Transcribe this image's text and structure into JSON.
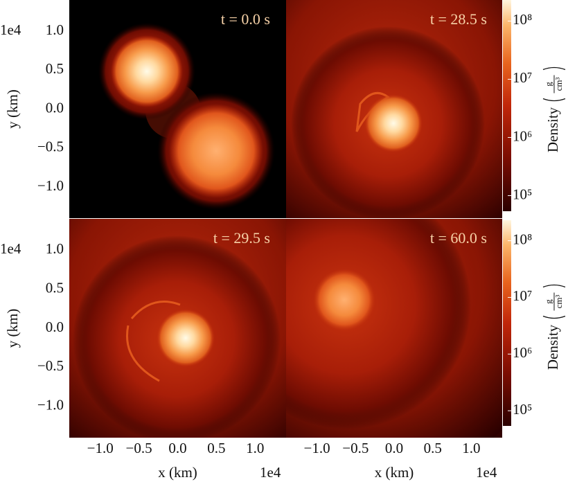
{
  "chart_data": [
    {
      "type": "heatmap",
      "annotation": "t = 0.0 s",
      "xlim": [
        -1.4,
        1.4
      ],
      "ylim": [
        -1.4,
        1.4
      ],
      "ylabel": "y  (km)",
      "y_offset": "1e4",
      "yticks": [
        {
          "value": -1,
          "label": "−1.0"
        },
        {
          "value": -0.5,
          "label": "−0.5"
        },
        {
          "value": 0,
          "label": "0.0"
        },
        {
          "value": 0.5,
          "label": "0.5"
        },
        {
          "value": 1,
          "label": "1.0"
        }
      ]
    },
    {
      "type": "heatmap",
      "annotation": "t = 28.5 s",
      "xlim": [
        -1.4,
        1.4
      ],
      "ylim": [
        -1.4,
        1.4
      ],
      "colorbar": {
        "label": "Density",
        "unit_numerator": "g",
        "unit_denominator": "cm³",
        "log": true,
        "lim": [
          54000,
          230000000
        ],
        "ticks": [
          {
            "value": 100000,
            "label": "10⁵"
          },
          {
            "value": 1000000,
            "label": "10⁶"
          },
          {
            "value": 10000000,
            "label": "10⁷"
          },
          {
            "value": 100000000,
            "label": "10⁸"
          }
        ]
      }
    },
    {
      "type": "heatmap",
      "annotation": "t = 29.5 s",
      "xlim": [
        -1.4,
        1.4
      ],
      "ylim": [
        -1.4,
        1.4
      ],
      "ylabel": "y  (km)",
      "y_offset": "1e4",
      "xlabel": "x  (km)",
      "x_offset": "1e4",
      "yticks": [
        {
          "value": -1,
          "label": "−1.0"
        },
        {
          "value": -0.5,
          "label": "−0.5"
        },
        {
          "value": 0,
          "label": "0.0"
        },
        {
          "value": 0.5,
          "label": "0.5"
        },
        {
          "value": 1,
          "label": "1.0"
        }
      ],
      "xticks": [
        {
          "value": -1,
          "label": "−1.0"
        },
        {
          "value": -0.5,
          "label": "−0.5"
        },
        {
          "value": 0,
          "label": "0.0"
        },
        {
          "value": 0.5,
          "label": "0.5"
        },
        {
          "value": 1,
          "label": "1.0"
        }
      ]
    },
    {
      "type": "heatmap",
      "annotation": "t = 60.0 s",
      "xlim": [
        -1.4,
        1.4
      ],
      "ylim": [
        -1.4,
        1.4
      ],
      "xlabel": "x  (km)",
      "x_offset": "1e4",
      "xticks": [
        {
          "value": -1,
          "label": "−1.0"
        },
        {
          "value": -0.5,
          "label": "−0.5"
        },
        {
          "value": 0,
          "label": "0.0"
        },
        {
          "value": 0.5,
          "label": "0.5"
        },
        {
          "value": 1,
          "label": "1.0"
        }
      ],
      "colorbar": {
        "label": "Density",
        "unit_numerator": "g",
        "unit_denominator": "cm³",
        "log": true,
        "lim": [
          54000,
          230000000
        ],
        "ticks": [
          {
            "value": 100000,
            "label": "10⁵"
          },
          {
            "value": 1000000,
            "label": "10⁶"
          },
          {
            "value": 10000000,
            "label": "10⁷"
          },
          {
            "value": 100000000,
            "label": "10⁸"
          }
        ]
      }
    }
  ]
}
